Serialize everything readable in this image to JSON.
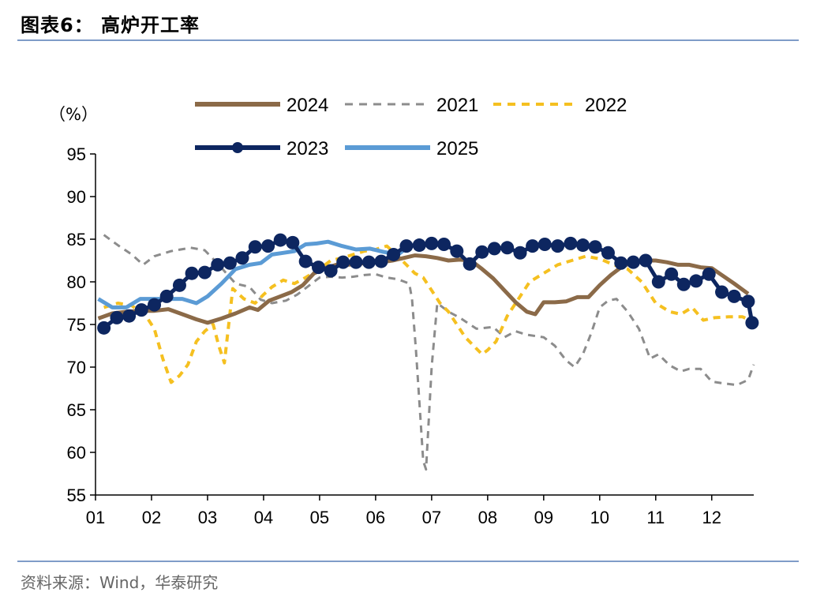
{
  "header": {
    "title": "图表6：  高炉开工率"
  },
  "footer": {
    "source": "资料来源：Wind，华泰研究"
  },
  "chart_data": {
    "type": "line",
    "title": "高炉开工率",
    "ylabel": "（%）",
    "xlabel": "",
    "ylim": [
      55,
      95
    ],
    "yticks": [
      55,
      60,
      65,
      70,
      75,
      80,
      85,
      90,
      95
    ],
    "xlim": [
      1,
      12.75
    ],
    "categories": [
      "01",
      "02",
      "03",
      "04",
      "05",
      "06",
      "07",
      "08",
      "09",
      "10",
      "11",
      "12"
    ],
    "legend": [
      "2024",
      "2021",
      "2022",
      "2023",
      "2025"
    ],
    "series": [
      {
        "name": "2024",
        "color": "#8b6a48",
        "style": "solid",
        "markers": false,
        "x": [
          1.05,
          1.3,
          1.55,
          1.8,
          2.05,
          2.3,
          2.55,
          2.8,
          3.0,
          3.25,
          3.5,
          3.75,
          3.9,
          4.1,
          4.3,
          4.5,
          4.7,
          4.9,
          5.1,
          5.3,
          5.5,
          5.7,
          5.9,
          6.1,
          6.3,
          6.5,
          6.7,
          6.9,
          7.1,
          7.3,
          7.5,
          7.7,
          7.9,
          8.1,
          8.3,
          8.5,
          8.7,
          8.85,
          9.0,
          9.2,
          9.4,
          9.6,
          9.8,
          10.0,
          10.2,
          10.4,
          10.6,
          10.8,
          11.0,
          11.2,
          11.4,
          11.6,
          11.8,
          12.0,
          12.2,
          12.4,
          12.65
        ],
        "values": [
          75.7,
          76.3,
          76.5,
          76.6,
          76.6,
          76.8,
          76.2,
          75.6,
          75.2,
          75.7,
          76.3,
          77.0,
          76.7,
          77.8,
          78.3,
          78.8,
          79.6,
          81.0,
          81.6,
          82.0,
          82.0,
          82.1,
          82.3,
          82.3,
          82.5,
          82.8,
          83.1,
          83.0,
          82.8,
          82.5,
          82.6,
          82.5,
          81.5,
          80.4,
          79.0,
          77.6,
          76.5,
          76.2,
          77.6,
          77.6,
          77.7,
          78.2,
          78.2,
          79.6,
          80.8,
          81.8,
          82.3,
          82.5,
          82.5,
          82.3,
          82.0,
          82.0,
          81.7,
          81.6,
          80.7,
          79.8,
          78.6
        ]
      },
      {
        "name": "2021",
        "color": "#8c8c8c",
        "style": "dashed",
        "markers": false,
        "x": [
          1.15,
          1.4,
          1.65,
          1.85,
          2.05,
          2.35,
          2.7,
          2.95,
          3.2,
          3.5,
          3.75,
          3.95,
          4.15,
          4.4,
          4.6,
          4.8,
          5.0,
          5.2,
          5.4,
          5.6,
          5.8,
          6.0,
          6.2,
          6.4,
          6.6,
          6.65,
          6.72,
          6.8,
          6.85,
          6.9,
          7.0,
          7.1,
          7.3,
          7.5,
          7.8,
          8.1,
          8.3,
          8.5,
          8.7,
          9.0,
          9.2,
          9.4,
          9.55,
          9.7,
          9.85,
          10.0,
          10.15,
          10.3,
          10.5,
          10.7,
          10.9,
          11.05,
          11.25,
          11.45,
          11.6,
          11.8,
          12.0,
          12.2,
          12.45,
          12.65,
          12.75
        ],
        "values": [
          85.5,
          84.3,
          83.2,
          82.0,
          83.0,
          83.6,
          84.0,
          83.7,
          82.0,
          79.8,
          79.4,
          77.9,
          77.5,
          77.8,
          78.5,
          79.5,
          80.5,
          80.6,
          80.5,
          80.6,
          80.8,
          80.9,
          80.5,
          80.3,
          79.8,
          78.0,
          72.0,
          64.0,
          59.0,
          58.0,
          70.0,
          77.5,
          76.5,
          75.8,
          74.5,
          74.7,
          73.5,
          74.2,
          73.8,
          73.5,
          72.5,
          70.8,
          70.0,
          71.5,
          74.0,
          77.0,
          77.8,
          78.0,
          76.5,
          74.5,
          71.0,
          71.5,
          70.2,
          69.5,
          69.8,
          69.8,
          68.3,
          68.1,
          67.9,
          68.5,
          70.3
        ]
      },
      {
        "name": "2022",
        "color": "#f5c020",
        "style": "dashed",
        "markers": false,
        "x": [
          1.15,
          1.4,
          1.65,
          1.9,
          2.05,
          2.2,
          2.35,
          2.5,
          2.65,
          2.8,
          2.95,
          3.1,
          3.2,
          3.3,
          3.45,
          3.65,
          3.85,
          4.0,
          4.15,
          4.35,
          4.55,
          4.75,
          5.0,
          5.2,
          5.4,
          5.6,
          5.8,
          6.0,
          6.2,
          6.4,
          6.55,
          6.7,
          6.85,
          7.0,
          7.15,
          7.3,
          7.45,
          7.6,
          7.75,
          7.9,
          8.0,
          8.15,
          8.35,
          8.55,
          8.75,
          9.0,
          9.25,
          9.5,
          9.75,
          10.0,
          10.25,
          10.5,
          10.75,
          11.0,
          11.25,
          11.45,
          11.65,
          11.85,
          12.05,
          12.3,
          12.55,
          12.65
        ],
        "values": [
          77.0,
          77.5,
          77.2,
          76.0,
          74.5,
          71.0,
          68.2,
          69.0,
          70.3,
          73.0,
          74.2,
          75.0,
          72.5,
          70.5,
          79.2,
          78.0,
          77.5,
          78.5,
          79.4,
          80.2,
          79.8,
          80.5,
          81.5,
          82.5,
          82.8,
          83.2,
          83.6,
          83.8,
          84.2,
          83.0,
          82.0,
          81.0,
          80.5,
          79.0,
          77.5,
          76.5,
          75.0,
          73.5,
          72.5,
          71.5,
          72.0,
          73.0,
          76.0,
          78.0,
          80.0,
          81.0,
          82.0,
          82.5,
          83.0,
          82.7,
          82.0,
          81.5,
          80.0,
          77.5,
          76.5,
          76.2,
          77.0,
          75.5,
          75.8,
          75.9,
          75.9,
          75.6
        ]
      },
      {
        "name": "2023",
        "color": "#0d2660",
        "style": "solid",
        "markers": true,
        "x": [
          1.15,
          1.38,
          1.6,
          1.82,
          2.05,
          2.27,
          2.5,
          2.72,
          2.95,
          3.18,
          3.4,
          3.62,
          3.85,
          4.08,
          4.3,
          4.52,
          4.75,
          4.98,
          5.2,
          5.42,
          5.65,
          5.88,
          6.1,
          6.32,
          6.55,
          6.78,
          7.0,
          7.22,
          7.45,
          7.68,
          7.9,
          8.12,
          8.35,
          8.58,
          8.8,
          9.02,
          9.25,
          9.48,
          9.7,
          9.92,
          10.15,
          10.38,
          10.6,
          10.82,
          11.05,
          11.28,
          11.5,
          11.72,
          11.95,
          12.18,
          12.4,
          12.65
        ],
        "values": [
          74.6,
          75.8,
          76.0,
          76.7,
          77.3,
          78.3,
          79.6,
          81.0,
          81.1,
          82.0,
          82.2,
          82.8,
          84.1,
          84.2,
          84.9,
          84.6,
          82.4,
          81.7,
          81.3,
          82.3,
          82.3,
          82.3,
          82.4,
          83.2,
          84.2,
          84.3,
          84.5,
          84.4,
          83.6,
          82.1,
          83.5,
          83.9,
          84.0,
          83.4,
          84.2,
          84.4,
          84.2,
          84.5,
          84.3,
          84.1,
          83.4,
          82.2,
          82.3,
          82.5,
          80.0,
          80.9,
          79.7,
          80.1,
          80.9,
          78.8,
          78.3,
          77.7
        ],
        "end": {
          "x": 12.72,
          "value": 75.2
        }
      },
      {
        "name": "2025",
        "color": "#5b9bd5",
        "style": "solid",
        "markers": false,
        "x": [
          1.05,
          1.3,
          1.55,
          1.8,
          2.05,
          2.3,
          2.55,
          2.8,
          3.0,
          3.25,
          3.5,
          3.75,
          3.95,
          4.15,
          4.35,
          4.55,
          4.75,
          4.95,
          5.15,
          5.4,
          5.65,
          5.9,
          6.15,
          6.4,
          6.5
        ],
        "values": [
          78.0,
          77.0,
          77.0,
          78.0,
          78.0,
          78.0,
          78.0,
          77.5,
          78.3,
          79.8,
          81.5,
          82.0,
          82.2,
          83.2,
          83.4,
          83.6,
          84.4,
          84.5,
          84.7,
          84.2,
          83.8,
          83.9,
          83.5,
          83.2,
          83.7
        ]
      }
    ]
  }
}
